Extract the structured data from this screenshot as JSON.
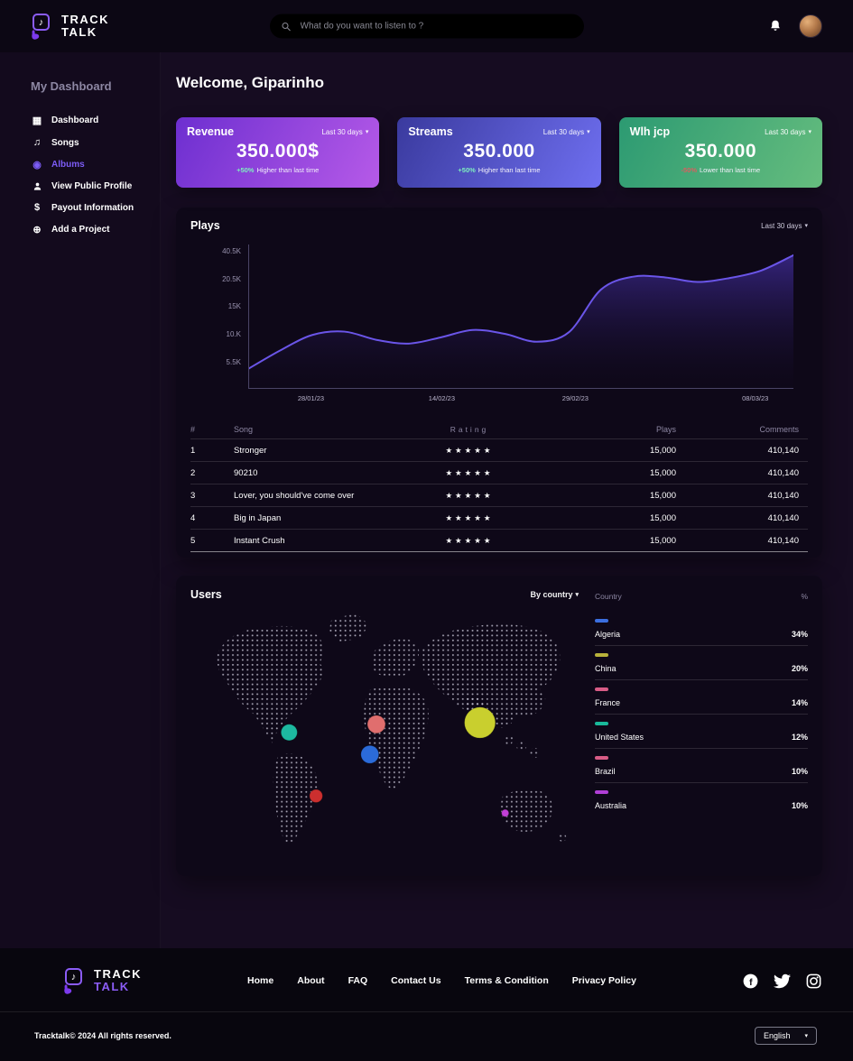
{
  "header": {
    "logo_line1": "TRACK",
    "logo_line2": "TALK",
    "search_placeholder": "What do you want to listen to ?"
  },
  "sidebar": {
    "title": "My Dashboard",
    "items": [
      {
        "label": "Dashboard"
      },
      {
        "label": "Songs"
      },
      {
        "label": "Albums"
      },
      {
        "label": "View Public Profile"
      },
      {
        "label": "Payout Information"
      },
      {
        "label": "Add a Project"
      }
    ]
  },
  "main": {
    "welcome": "Welcome, Giparinho",
    "stats": [
      {
        "title": "Revenue",
        "period": "Last 30 days",
        "value": "350.000$",
        "delta": "+50%",
        "delta_note": "Higher than last time",
        "delta_color": "#7ef0c0",
        "gradient_from": "#6d2fd0",
        "gradient_to": "#b65ae8"
      },
      {
        "title": "Streams",
        "period": "Last 30 days",
        "value": "350.000",
        "delta": "+50%",
        "delta_note": "Higher than last time",
        "delta_color": "#7ef0c0",
        "gradient_from": "#3a3a9e",
        "gradient_to": "#6f6ff0"
      },
      {
        "title": "Wlh jcp",
        "period": "Last 30 days",
        "value": "350.000",
        "delta": "-50%",
        "delta_note": "Lower than last time",
        "delta_color": "#d95f5f",
        "gradient_from": "#2c9a72",
        "gradient_to": "#66bd7e"
      }
    ],
    "plays": {
      "title": "Plays",
      "period": "Last 30 days",
      "table": {
        "headers": {
          "num": "#",
          "song": "Song",
          "rating": "Rating",
          "plays": "Plays",
          "comments": "Comments"
        },
        "rows": [
          {
            "num": "1",
            "song": "Stronger",
            "rating": "★★★★★",
            "plays": "15,000",
            "comments": "410,140"
          },
          {
            "num": "2",
            "song": "90210",
            "rating": "★★★★★",
            "plays": "15,000",
            "comments": "410,140"
          },
          {
            "num": "3",
            "song": "Lover, you should've come over",
            "rating": "★★★★★",
            "plays": "15,000",
            "comments": "410,140"
          },
          {
            "num": "4",
            "song": "Big in Japan",
            "rating": "★★★★★",
            "plays": "15,000",
            "comments": "410,140"
          },
          {
            "num": "5",
            "song": "Instant Crush",
            "rating": "★★★★★",
            "plays": "15,000",
            "comments": "410,140"
          }
        ]
      }
    },
    "users": {
      "title": "Users",
      "filter_label": "By country",
      "list_header": {
        "country": "Country",
        "pct": "%"
      },
      "countries": [
        {
          "name": "Algeria",
          "pct": "34%",
          "color": "#3b6fe0"
        },
        {
          "name": "China",
          "pct": "20%",
          "color": "#b8b23b"
        },
        {
          "name": "France",
          "pct": "14%",
          "color": "#d85c86"
        },
        {
          "name": "United States",
          "pct": "12%",
          "color": "#19b89a"
        },
        {
          "name": "Brazil",
          "pct": "10%",
          "color": "#d85c86"
        },
        {
          "name": "Australia",
          "pct": "10%",
          "color": "#b03fd6"
        }
      ],
      "bubbles": [
        {
          "name": "north-america-bubble",
          "color": "#1db9a0"
        },
        {
          "name": "west-africa-bubble",
          "color": "#e06e6e"
        },
        {
          "name": "central-africa-bubble",
          "color": "#2b6bd9"
        },
        {
          "name": "south-america-bubble",
          "color": "#cc2f2f"
        },
        {
          "name": "asia-bubble",
          "color": "#c9cf2e"
        },
        {
          "name": "australia-bubble",
          "color": "#c13fd6"
        }
      ]
    }
  },
  "footer": {
    "logo_line1": "TRACK",
    "logo_line2": "TALK",
    "nav": [
      {
        "label": "Home"
      },
      {
        "label": "About"
      },
      {
        "label": "FAQ"
      },
      {
        "label": "Contact Us"
      },
      {
        "label": "Terms & Condition"
      },
      {
        "label": "Privacy Policy"
      }
    ],
    "copyright": "Tracktalk© 2024 All rights reserved.",
    "language": "English"
  },
  "chart_data": [
    {
      "type": "area",
      "title": "Plays",
      "x_tick_labels": [
        "28/01/23",
        "14/02/23",
        "29/02/23",
        "08/03/23"
      ],
      "y_tick_labels": [
        "40.5K",
        "20.5K",
        "15K",
        "10.K",
        "5.5K"
      ],
      "y_tick_values_bottom_up": [
        5.5,
        10,
        15,
        20.5,
        40.5
      ],
      "series": [
        {
          "name": "Plays",
          "values_k": [
            4.5,
            7.5,
            10,
            10.6,
            9.2,
            8.6,
            9.6,
            10.9,
            10.2,
            8.9,
            10.5,
            18.5,
            22.5,
            22,
            20,
            21.5,
            27,
            38
          ]
        }
      ],
      "line_color": "#6a55e8",
      "grid": false,
      "legend": "none"
    },
    {
      "type": "bar",
      "title": "Users by country",
      "categories": [
        "Algeria",
        "China",
        "France",
        "United States",
        "Brazil",
        "Australia"
      ],
      "values_pct": [
        34,
        20,
        14,
        12,
        10,
        10
      ]
    }
  ]
}
